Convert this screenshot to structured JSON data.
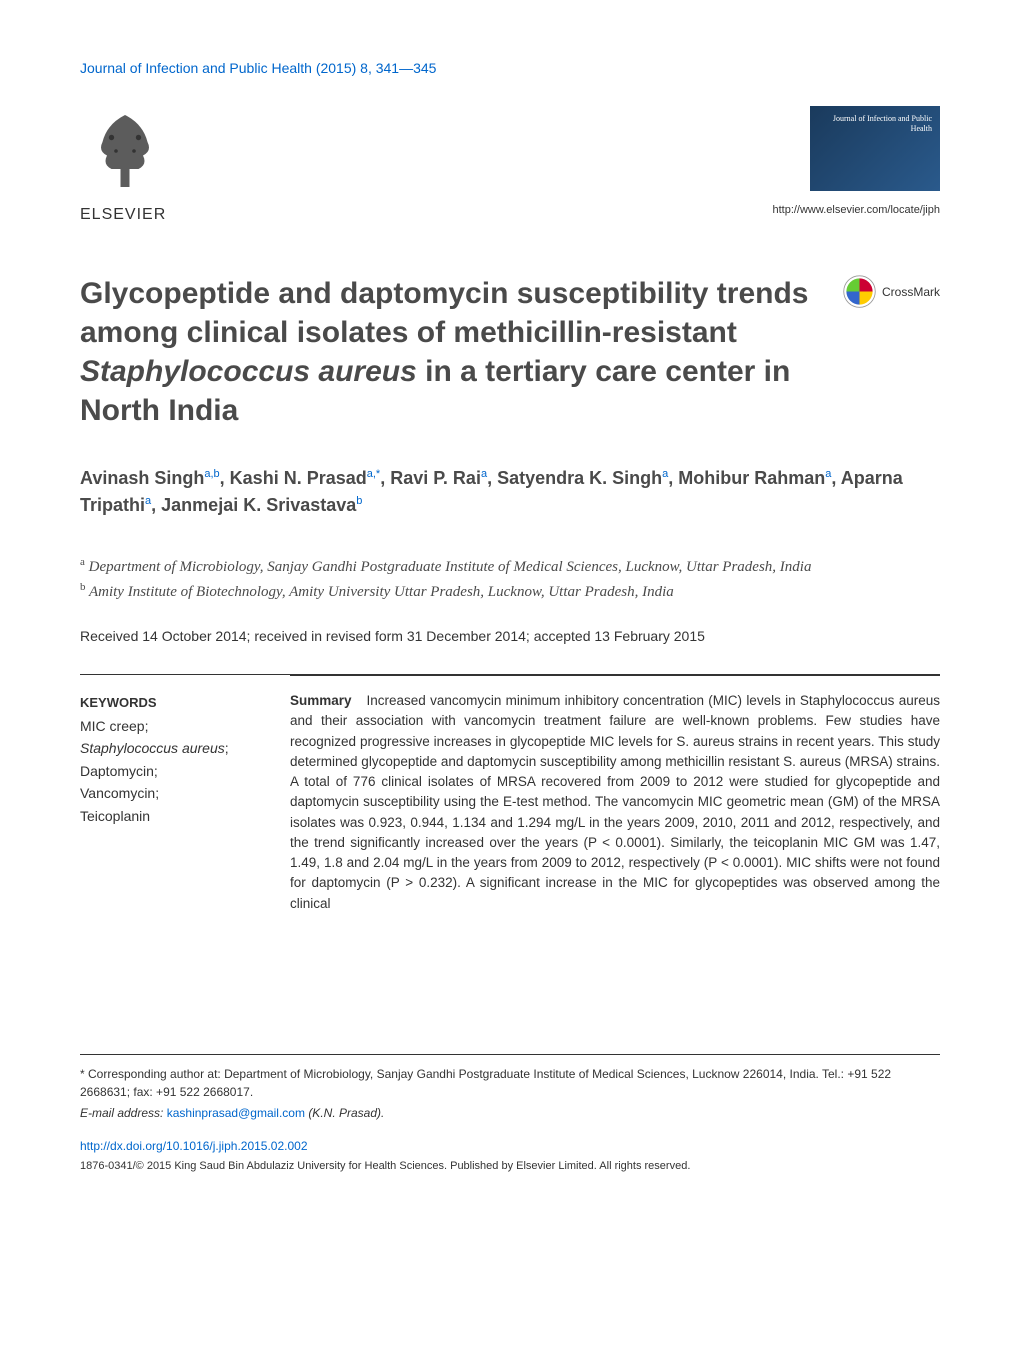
{
  "journal_header": "Journal of Infection and Public Health (2015) 8, 341—345",
  "elsevier_label": "ELSEVIER",
  "journal_logo_text": "Journal of Infection and Public Health",
  "journal_url": "http://www.elsevier.com/locate/jiph",
  "crossmark_label": "CrossMark",
  "title": {
    "line1": "Glycopeptide and daptomycin susceptibility trends among clinical isolates of methicillin-resistant ",
    "italic": "Staphylococcus aureus",
    "line2": " in a tertiary care center in North India"
  },
  "authors": [
    {
      "name": "Avinash Singh",
      "affil": "a,b"
    },
    {
      "name": "Kashi N. Prasad",
      "affil": "a,*"
    },
    {
      "name": "Ravi P. Rai",
      "affil": "a"
    },
    {
      "name": "Satyendra K. Singh",
      "affil": "a"
    },
    {
      "name": "Mohibur Rahman",
      "affil": "a"
    },
    {
      "name": "Aparna Tripathi",
      "affil": "a"
    },
    {
      "name": "Janmejai K. Srivastava",
      "affil": "b"
    }
  ],
  "affiliations": [
    {
      "label": "a",
      "text": "Department of Microbiology, Sanjay Gandhi Postgraduate Institute of Medical Sciences, Lucknow, Uttar Pradesh, India"
    },
    {
      "label": "b",
      "text": "Amity Institute of Biotechnology, Amity University Uttar Pradesh, Lucknow, Uttar Pradesh, India"
    }
  ],
  "dates": "Received 14 October 2014; received in revised form 31 December 2014; accepted 13 February 2015",
  "keywords_title": "KEYWORDS",
  "keywords": [
    {
      "text": "MIC creep;",
      "italic": false
    },
    {
      "text": "Staphylococcus aureus",
      "italic": true,
      "suffix": ";"
    },
    {
      "text": "Daptomycin;",
      "italic": false
    },
    {
      "text": "Vancomycin;",
      "italic": false
    },
    {
      "text": "Teicoplanin",
      "italic": false
    }
  ],
  "summary_label": "Summary",
  "summary_text": "Increased vancomycin minimum inhibitory concentration (MIC) levels in Staphylococcus aureus and their association with vancomycin treatment failure are well-known problems. Few studies have recognized progressive increases in glycopeptide MIC levels for S. aureus strains in recent years. This study determined glycopeptide and daptomycin susceptibility among methicillin resistant S. aureus (MRSA) strains. A total of 776 clinical isolates of MRSA recovered from 2009 to 2012 were studied for glycopeptide and daptomycin susceptibility using the E-test method. The vancomycin MIC geometric mean (GM) of the MRSA isolates was 0.923, 0.944, 1.134 and 1.294 mg/L in the years 2009, 2010, 2011 and 2012, respectively, and the trend significantly increased over the years (P < 0.0001). Similarly, the teicoplanin MIC GM was 1.47, 1.49, 1.8 and 2.04 mg/L in the years from 2009 to 2012, respectively (P < 0.0001). MIC shifts were not found for daptomycin (P > 0.232). A significant increase in the MIC for glycopeptides was observed among the clinical",
  "footer": {
    "corresponding": "* Corresponding author at: Department of Microbiology, Sanjay Gandhi Postgraduate Institute of Medical Sciences, Lucknow 226014, India. Tel.: +91 522 2668631; fax: +91 522 2668017.",
    "email_label": "E-mail address:",
    "email": "kashinprasad@gmail.com",
    "email_author": "(K.N. Prasad).",
    "doi": "http://dx.doi.org/10.1016/j.jiph.2015.02.002",
    "copyright": "1876-0341/© 2015 King Saud Bin Abdulaziz University for Health Sciences. Published by Elsevier Limited. All rights reserved."
  },
  "colors": {
    "link_blue": "#0066cc",
    "text_gray": "#4a4a4a",
    "crossmark_red": "#cc0033",
    "crossmark_yellow": "#ffcc00",
    "crossmark_blue": "#3366cc",
    "crossmark_green": "#66cc33"
  }
}
